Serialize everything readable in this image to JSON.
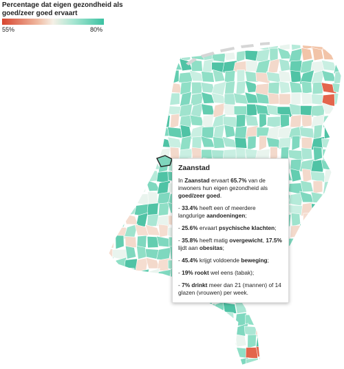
{
  "legend": {
    "title": "Percentage dat eigen gezondheid als goed/zeer goed ervaart",
    "min_label": "55%",
    "max_label": "80%"
  },
  "tooltip": {
    "title": "Zaanstad",
    "paragraphs": [
      [
        {
          "text": "In "
        },
        {
          "text": "Zaanstad",
          "bold": true
        },
        {
          "text": " ervaart "
        },
        {
          "text": "65.7%",
          "bold": true
        },
        {
          "text": " van de inwoners hun eigen gezondheid als "
        },
        {
          "text": "goed/zeer goed",
          "bold": true
        },
        {
          "text": "."
        }
      ],
      [
        {
          "text": "- "
        },
        {
          "text": "33.4%",
          "bold": true
        },
        {
          "text": " heeft een of meerdere langdurige "
        },
        {
          "text": "aandoeningen",
          "bold": true
        },
        {
          "text": ";"
        }
      ],
      [
        {
          "text": "- "
        },
        {
          "text": "25.6%",
          "bold": true
        },
        {
          "text": " ervaart "
        },
        {
          "text": "psychische klachten",
          "bold": true
        },
        {
          "text": ";"
        }
      ],
      [
        {
          "text": "- "
        },
        {
          "text": "35.8%",
          "bold": true
        },
        {
          "text": " heeft matig "
        },
        {
          "text": "overgewicht",
          "bold": true
        },
        {
          "text": ", "
        },
        {
          "text": "17.5%",
          "bold": true
        },
        {
          "text": " lijdt aan "
        },
        {
          "text": "obesitas",
          "bold": true
        },
        {
          "text": ";"
        }
      ],
      [
        {
          "text": "- "
        },
        {
          "text": "45.4%",
          "bold": true
        },
        {
          "text": " krijgt voldoende "
        },
        {
          "text": "beweging",
          "bold": true
        },
        {
          "text": ";"
        }
      ],
      [
        {
          "text": "- "
        },
        {
          "text": "19% rookt",
          "bold": true
        },
        {
          "text": " wel eens (tabak);"
        }
      ],
      [
        {
          "text": "- "
        },
        {
          "text": "7% drinkt",
          "bold": true
        },
        {
          "text": " meer dan 21 (mannen) of 14 glazen (vrouwen) per week."
        }
      ]
    ]
  }
}
